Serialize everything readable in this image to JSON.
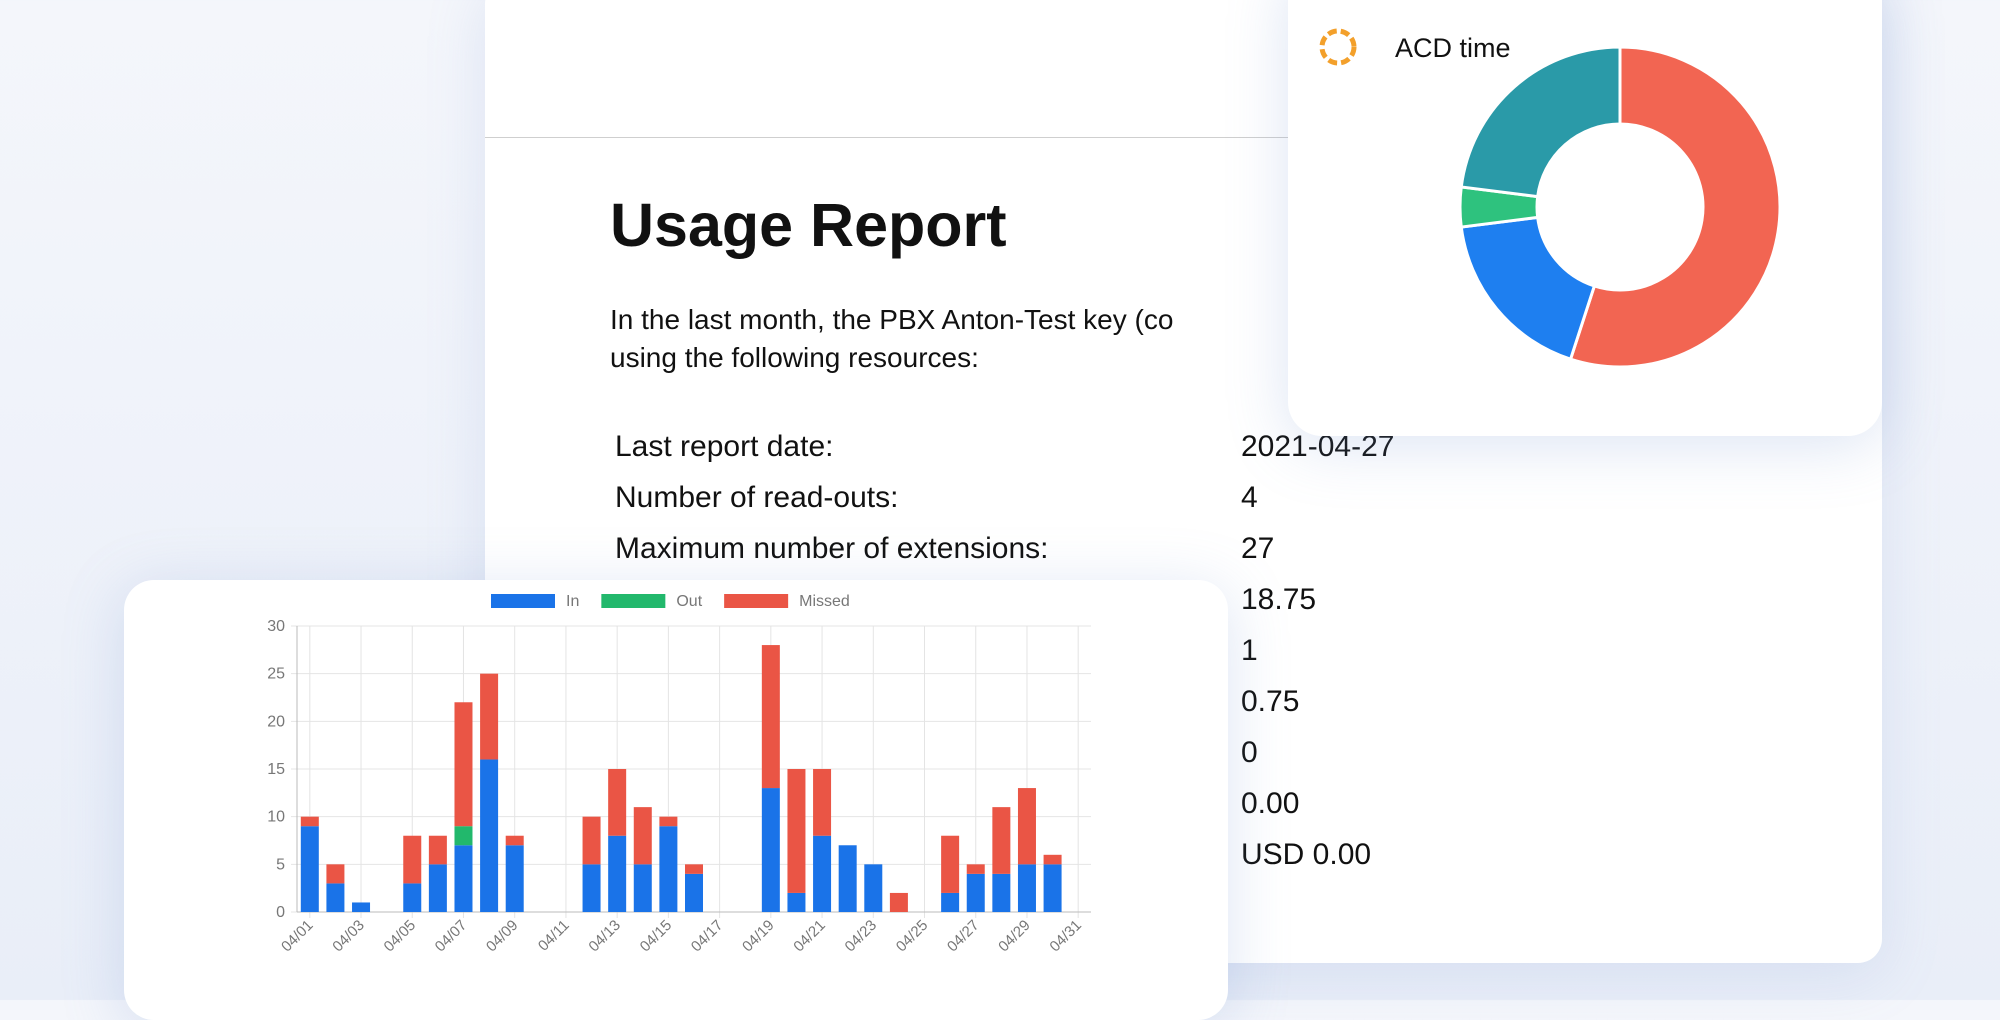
{
  "report": {
    "title": "Usage Report",
    "intro": [
      "In the last month, the PBX Anton-Test key (co",
      "using the following resources:"
    ],
    "rows": [
      {
        "label": "Last report date:",
        "value": "2021-04-27"
      },
      {
        "label": "Number of read-outs:",
        "value": "4"
      },
      {
        "label": "Maximum number of extensions:",
        "value": "27"
      },
      {
        "value": "18.75"
      },
      {
        "value": "1"
      },
      {
        "value": "0.75"
      },
      {
        "value": "0"
      },
      {
        "value": "0.00"
      },
      {
        "value": "USD 0.00"
      }
    ]
  },
  "chart_data": [
    {
      "type": "bar",
      "stacked": true,
      "grid": true,
      "categories": [
        "04/01",
        null,
        "04/03",
        null,
        "04/05",
        null,
        "04/07",
        null,
        "04/09",
        null,
        "04/11",
        null,
        "04/13",
        null,
        "04/15",
        null,
        "04/17",
        null,
        "04/19",
        null,
        "04/21",
        null,
        "04/23",
        null,
        "04/25",
        null,
        "04/27",
        null,
        "04/29",
        null,
        "04/31"
      ],
      "series": [
        {
          "name": "In",
          "color": "#1a73e8",
          "values": [
            9,
            3,
            1,
            0,
            3,
            5,
            7,
            16,
            7,
            0,
            0,
            5,
            8,
            5,
            9,
            4,
            0,
            0,
            13,
            2,
            8,
            7,
            5,
            0,
            0,
            2,
            4,
            4,
            5,
            5,
            0
          ]
        },
        {
          "name": "Out",
          "color": "#22b86c",
          "values": [
            0,
            0,
            0,
            0,
            0,
            0,
            2,
            0,
            0,
            0,
            0,
            0,
            0,
            0,
            0,
            0,
            0,
            0,
            0,
            0,
            0,
            0,
            0,
            0,
            0,
            0,
            0,
            0,
            0,
            0,
            0
          ]
        },
        {
          "name": "Missed",
          "color": "#ea5545",
          "values": [
            1,
            2,
            0,
            0,
            5,
            3,
            13,
            9,
            1,
            0,
            0,
            5,
            7,
            6,
            1,
            1,
            0,
            0,
            15,
            13,
            7,
            0,
            0,
            2,
            0,
            6,
            1,
            7,
            8,
            1,
            0
          ]
        }
      ],
      "ylim": [
        0,
        30
      ],
      "yticks": [
        0,
        5,
        10,
        15,
        20,
        25,
        30
      ],
      "legend": "top"
    },
    {
      "type": "donut",
      "title": "ACD time",
      "values": [
        55,
        18,
        4,
        23
      ],
      "colors": [
        "#f26552",
        "#1e7ff0",
        "#2ec27e",
        "#2a9aa8"
      ]
    }
  ]
}
